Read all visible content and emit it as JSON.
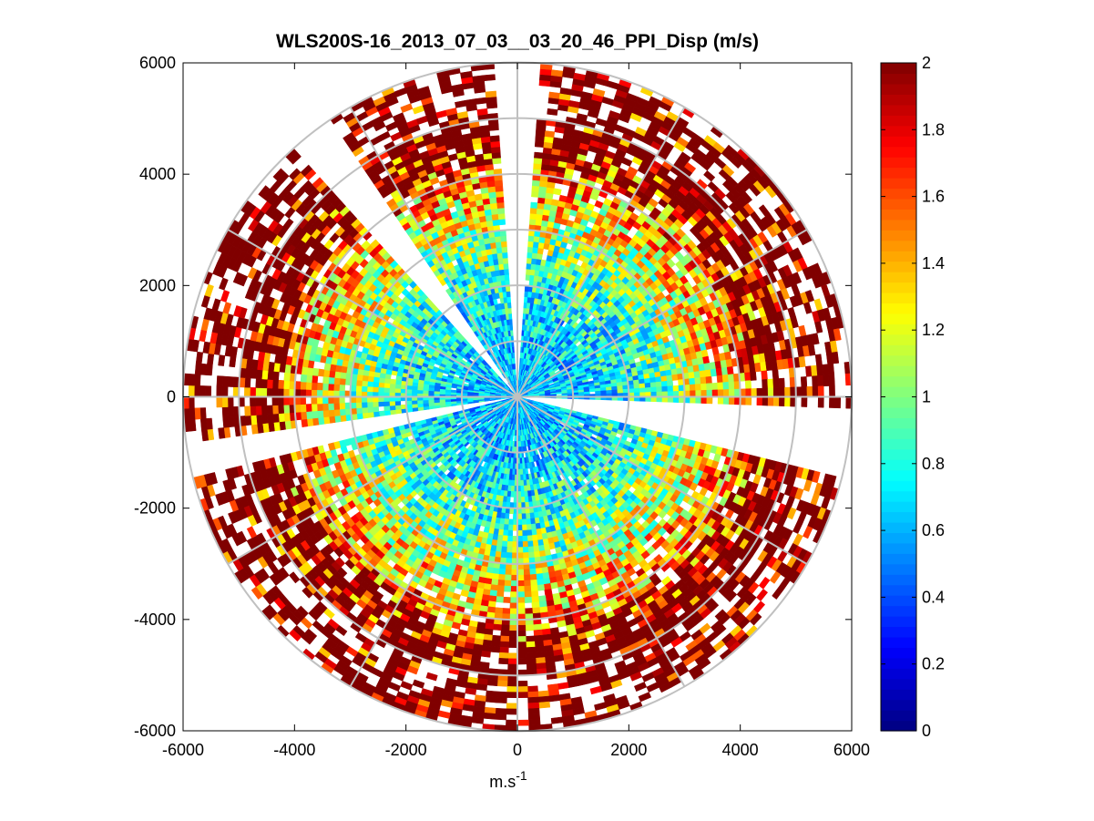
{
  "chart_data": {
    "type": "heatmap",
    "subtype": "polar-ppi",
    "title": "WLS200S-16_2013_07_03__03_20_46_PPI_Disp (m/s)",
    "xlabel": "m.s",
    "xlabel_superscript": "-1",
    "ylabel": "",
    "xlim": [
      -6000,
      6000
    ],
    "ylim": [
      -6000,
      6000
    ],
    "x_ticks": [
      -6000,
      -4000,
      -2000,
      0,
      2000,
      4000,
      6000
    ],
    "y_ticks": [
      -6000,
      -4000,
      -2000,
      0,
      2000,
      4000,
      6000
    ],
    "x_tick_labels": [
      "-6000",
      "-4000",
      "-2000",
      "0",
      "2000",
      "4000",
      "6000"
    ],
    "y_tick_labels": [
      "-6000",
      "-4000",
      "-2000",
      "0",
      "2000",
      "4000",
      "6000"
    ],
    "range_rings_m": [
      1000,
      2000,
      3000,
      4000,
      5000,
      6000
    ],
    "radial_lines_deg": [
      0,
      30,
      60,
      90,
      120,
      150,
      180,
      210,
      240,
      270,
      300,
      330
    ],
    "max_range_m": 6000,
    "grid": true,
    "colorbar": {
      "colormap": "jet",
      "min": 0,
      "max": 2,
      "ticks": [
        0,
        0.2,
        0.4,
        0.6,
        0.8,
        1,
        1.2,
        1.4,
        1.6,
        1.8,
        2
      ],
      "tick_labels": [
        "0",
        "0.2",
        "0.4",
        "0.6",
        "0.8",
        "1",
        "1.2",
        "1.4",
        "1.6",
        "1.8",
        "2"
      ],
      "placement": "right"
    },
    "value_profile": {
      "description_points_range_m": [
        0,
        1000,
        2000,
        3000,
        4000,
        5000,
        6000
      ],
      "typical_value_m_s": [
        0.6,
        0.65,
        0.8,
        1.1,
        1.5,
        1.9,
        2.0
      ]
    },
    "empty_sectors_deg": [
      [
        -3,
        3
      ],
      [
        93,
        103
      ],
      [
        256,
        262
      ],
      [
        318,
        326
      ]
    ],
    "colors": {
      "grid": "#c0c0c0",
      "axes": "#000000",
      "background": "#ffffff",
      "dark_red": "#800000"
    }
  }
}
